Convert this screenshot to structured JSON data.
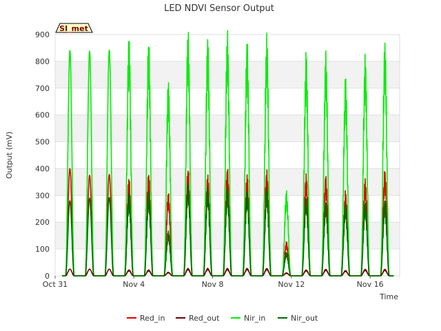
{
  "chart_data": {
    "type": "line",
    "title": "LED NDVI Sensor Output",
    "xlabel": "Time",
    "ylabel": "Output (mV)",
    "badge": "SI_met",
    "ylim": [
      0,
      900
    ],
    "yticks": [
      0,
      100,
      200,
      300,
      400,
      500,
      600,
      700,
      800,
      900
    ],
    "xlim": [
      0,
      17.5
    ],
    "xticks": [
      {
        "day": 0,
        "label": "Oct 31"
      },
      {
        "day": 4,
        "label": "Nov 4"
      },
      {
        "day": 8,
        "label": "Nov 8"
      },
      {
        "day": 12,
        "label": "Nov 12"
      },
      {
        "day": 16,
        "label": "Nov 16"
      }
    ],
    "grid": "horizontal bands",
    "legend_position": "bottom",
    "peak_days": [
      0.75,
      1.75,
      2.75,
      3.75,
      4.75,
      5.75,
      6.75,
      7.75,
      8.75,
      9.75,
      10.75,
      11.75,
      12.75,
      13.75,
      14.75,
      15.75,
      16.75
    ],
    "series": [
      {
        "name": "Red_in",
        "color": "#dd0000",
        "peaks": [
          400,
          375,
          378,
          330,
          345,
          280,
          360,
          340,
          362,
          340,
          355,
          115,
          340,
          335,
          285,
          325,
          355
        ]
      },
      {
        "name": "Red_out",
        "color": "#6b0000",
        "peaks": [
          25,
          25,
          25,
          20,
          20,
          12,
          25,
          25,
          25,
          25,
          25,
          10,
          20,
          22,
          18,
          22,
          22
        ]
      },
      {
        "name": "Nir_in",
        "color": "#00ee00",
        "peaks": [
          840,
          838,
          842,
          805,
          795,
          655,
          828,
          800,
          822,
          790,
          810,
          285,
          750,
          750,
          670,
          742,
          785
        ]
      },
      {
        "name": "Nir_out",
        "color": "#006600",
        "peaks": [
          280,
          290,
          292,
          275,
          280,
          150,
          312,
          295,
          295,
          285,
          292,
          80,
          265,
          252,
          242,
          248,
          252
        ]
      }
    ]
  }
}
